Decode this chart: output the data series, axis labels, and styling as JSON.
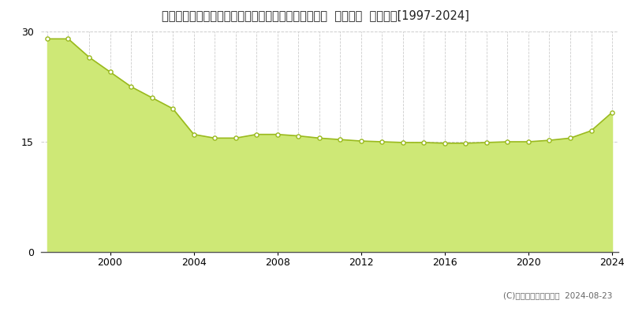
{
  "title": "北海道札幌市厚別区厚別東５条２丁目１４番１９４外  地価公示  地価推移[1997-2024]",
  "years": [
    1997,
    1998,
    1999,
    2000,
    2001,
    2002,
    2003,
    2004,
    2005,
    2006,
    2007,
    2008,
    2009,
    2010,
    2011,
    2012,
    2013,
    2014,
    2015,
    2016,
    2017,
    2018,
    2019,
    2020,
    2021,
    2022,
    2023,
    2024
  ],
  "values": [
    29.0,
    29.0,
    26.5,
    24.5,
    22.5,
    21.0,
    19.5,
    16.0,
    15.5,
    15.5,
    16.0,
    16.0,
    15.8,
    15.5,
    15.3,
    15.1,
    15.0,
    14.9,
    14.9,
    14.8,
    14.8,
    14.9,
    15.0,
    15.0,
    15.2,
    15.5,
    16.5,
    19.0
  ],
  "line_color": "#9aba1e",
  "fill_color": "#cee876",
  "marker_facecolor": "#ffffff",
  "marker_edgecolor": "#9aba1e",
  "bg_color": "#ffffff",
  "plot_bg_color": "#ffffff",
  "grid_color": "#cccccc",
  "ylim": [
    0,
    30
  ],
  "yticks": [
    0,
    15,
    30
  ],
  "xtick_years": [
    2000,
    2004,
    2008,
    2012,
    2016,
    2020,
    2024
  ],
  "copyright_text": "(C)土地価格ドットコム  2024-08-23",
  "title_fontsize": 10.5,
  "axis_fontsize": 9,
  "legend_fontsize": 8.5,
  "copyright_fontsize": 7.5
}
